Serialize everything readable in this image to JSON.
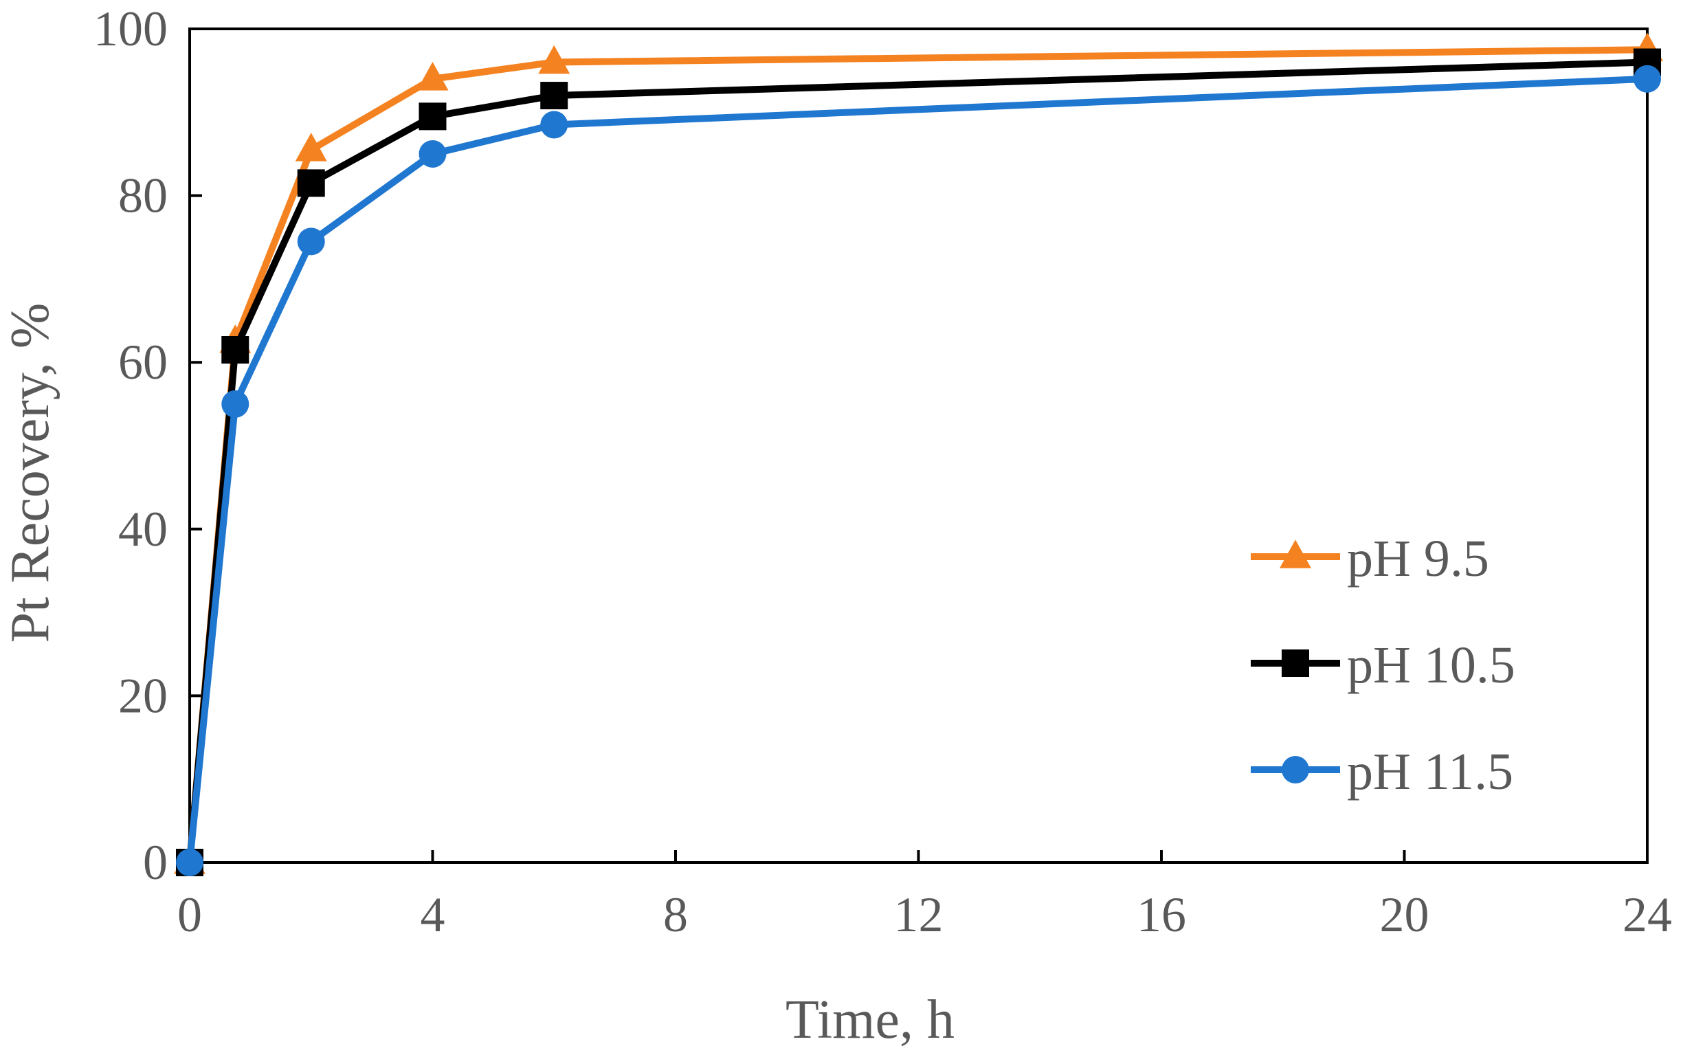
{
  "chart_data": {
    "type": "line",
    "title": "",
    "xlabel": "Time, h",
    "ylabel": "Pt Recovery, %",
    "xlim": [
      0,
      24
    ],
    "ylim": [
      0,
      100
    ],
    "xticks": [
      0,
      4,
      8,
      12,
      16,
      20,
      24
    ],
    "yticks": [
      0,
      20,
      40,
      60,
      80,
      100
    ],
    "xtick_labels": [
      "0",
      "4",
      "8",
      "12",
      "16",
      "20",
      "24"
    ],
    "ytick_labels": [
      "0",
      "20",
      "40",
      "60",
      "80",
      "100"
    ],
    "grid": false,
    "legend_position": "bottom-right",
    "x": [
      0,
      0.75,
      2,
      4,
      6,
      24
    ],
    "series": [
      {
        "name": "pH 9.5",
        "marker": "triangle",
        "color": "#F58220",
        "values": [
          0,
          62.5,
          85.5,
          94,
          96,
          97.5
        ]
      },
      {
        "name": "pH 10.5",
        "marker": "square",
        "color": "#000000",
        "values": [
          0,
          61.5,
          81.5,
          89.5,
          92,
          96
        ]
      },
      {
        "name": "pH 11.5",
        "marker": "circle",
        "color": "#1F77D0",
        "values": [
          0,
          55,
          74.5,
          85,
          88.5,
          94
        ]
      }
    ]
  }
}
